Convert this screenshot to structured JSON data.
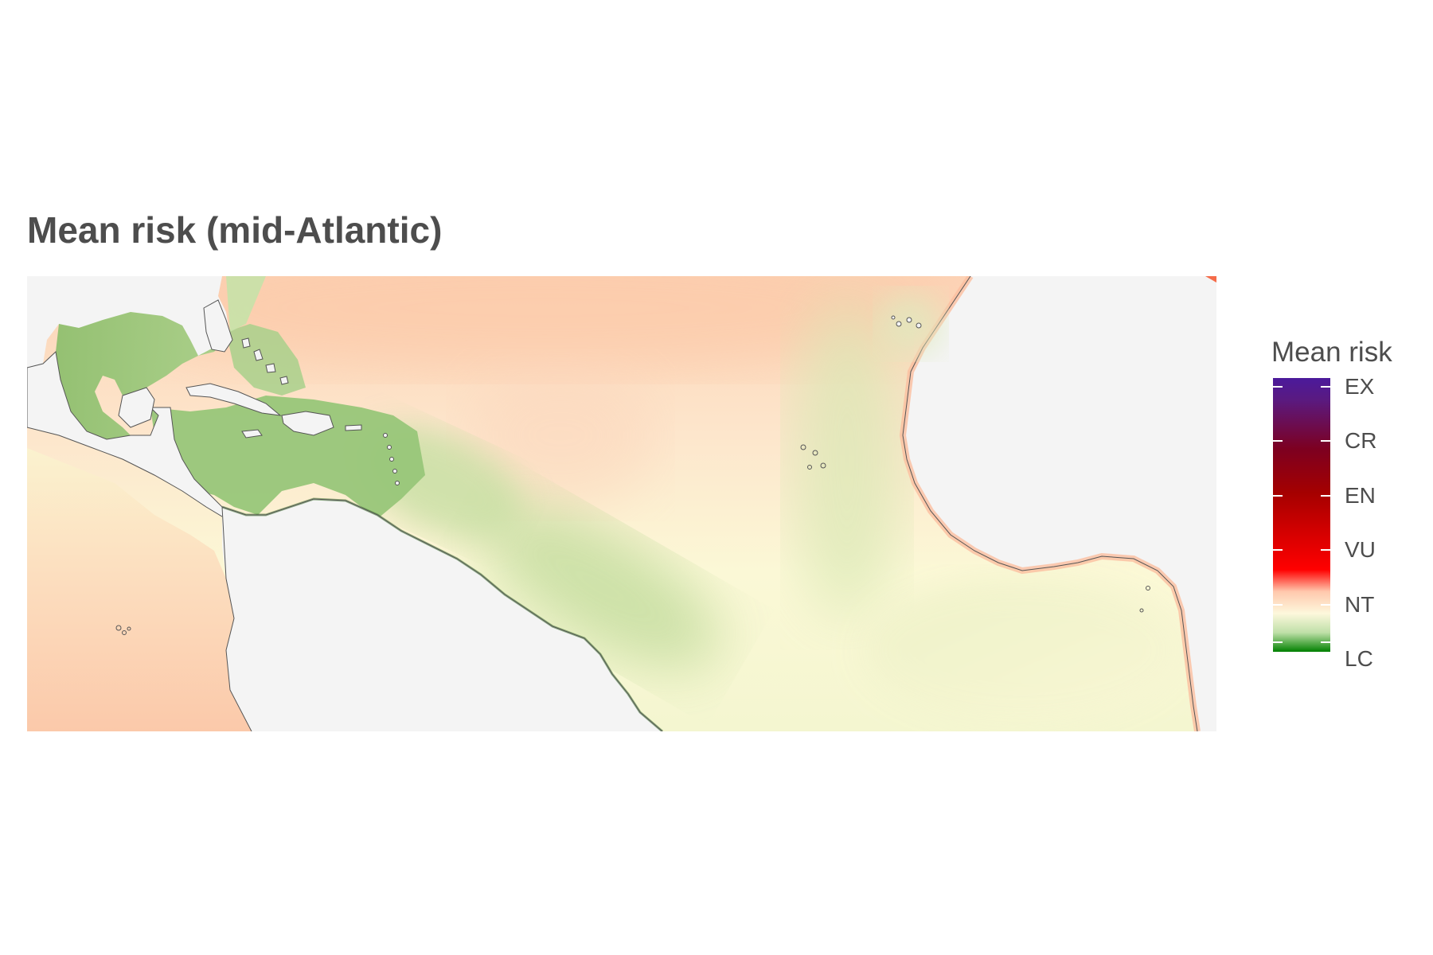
{
  "title": "Mean risk (mid-Atlantic)",
  "legend": {
    "title": "Mean risk",
    "categories": [
      {
        "label": "EX",
        "color": "#4b1a9c"
      },
      {
        "label": "CR",
        "color": "#8b0000"
      },
      {
        "label": "EN",
        "color": "#b80000"
      },
      {
        "label": "VU",
        "color": "#ff2a1a"
      },
      {
        "label": "NT",
        "color": "#fdf8dc"
      },
      {
        "label": "LC",
        "color": "#008000"
      }
    ]
  },
  "colors": {
    "land": "#f4f4f4",
    "coast_stroke": "#555555",
    "low_risk": "#8fbf6e",
    "moderate_risk": "#fdfbd8",
    "elevated_risk": "#fcd2b4"
  }
}
